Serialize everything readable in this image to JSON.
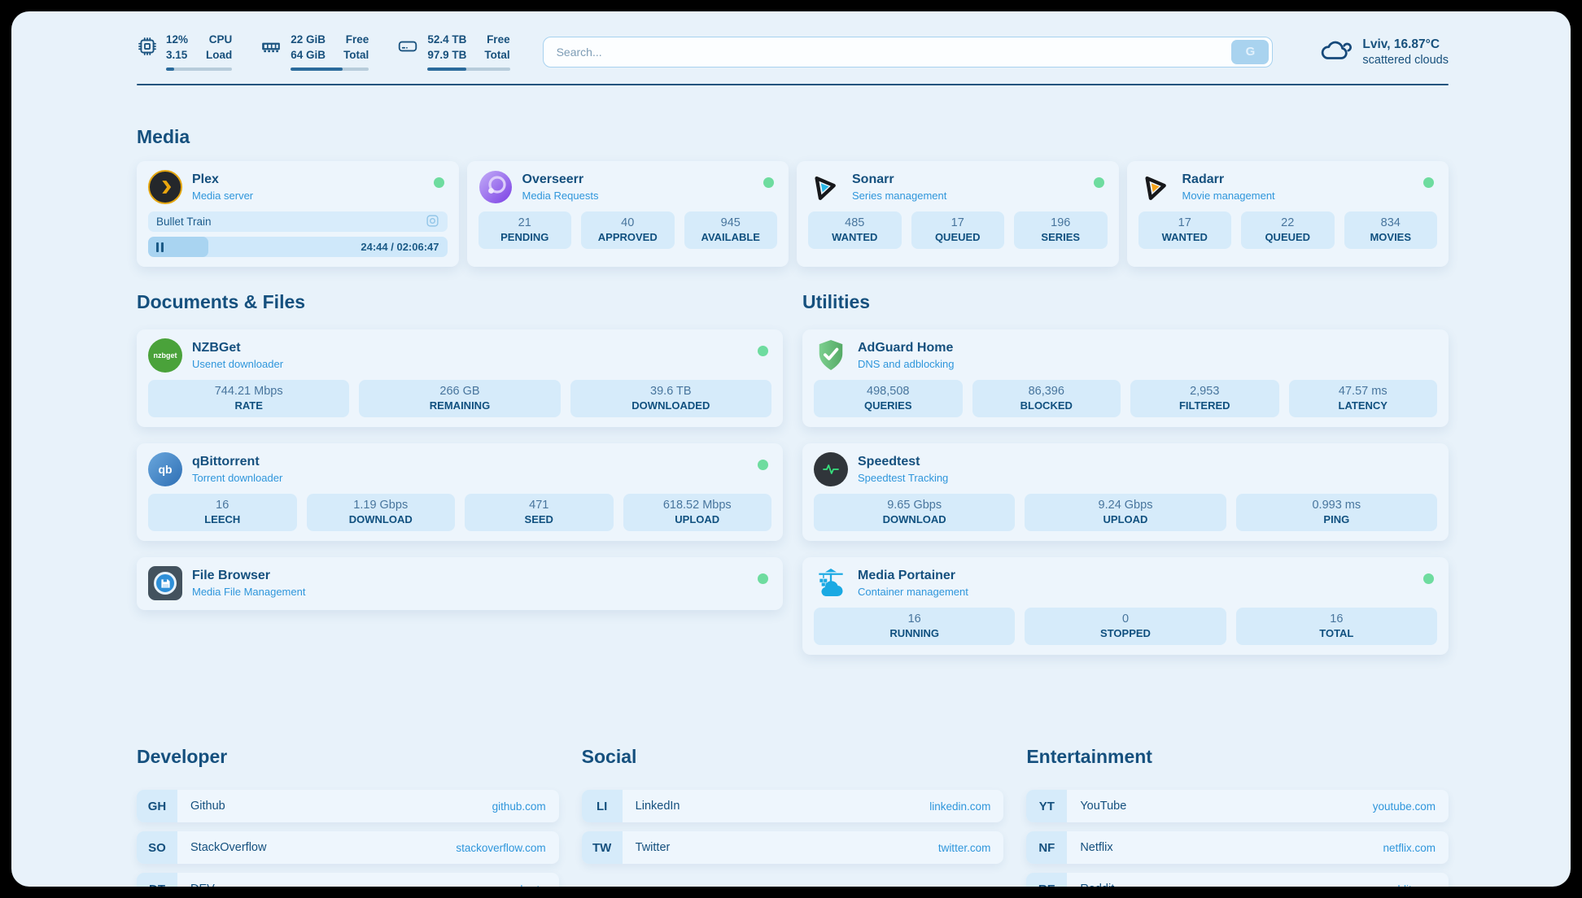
{
  "topbar": {
    "resources": [
      {
        "col1": [
          "12%",
          "3.15"
        ],
        "col2": [
          "CPU",
          "Load"
        ],
        "percent": 12
      },
      {
        "col1": [
          "22 GiB",
          "64 GiB"
        ],
        "col2": [
          "Free",
          "Total"
        ],
        "percent": 66
      },
      {
        "col1": [
          "52.4 TB",
          "97.9 TB"
        ],
        "col2": [
          "Free",
          "Total"
        ],
        "percent": 47
      }
    ],
    "search": {
      "placeholder": "Search...",
      "button_label": "G"
    },
    "weather": {
      "location_temp": "Lviv, 16.87°C",
      "condition": "scattered clouds"
    }
  },
  "media": {
    "title": "Media",
    "plex": {
      "name": "Plex",
      "desc": "Media server",
      "now_playing": {
        "title": "Bullet Train",
        "time": "24:44 / 02:06:47",
        "progress_percent": 20
      }
    },
    "overseerr": {
      "name": "Overseerr",
      "desc": "Media Requests",
      "stats": [
        {
          "value": "21",
          "label": "PENDING"
        },
        {
          "value": "40",
          "label": "APPROVED"
        },
        {
          "value": "945",
          "label": "AVAILABLE"
        }
      ]
    },
    "sonarr": {
      "name": "Sonarr",
      "desc": "Series management",
      "stats": [
        {
          "value": "485",
          "label": "WANTED"
        },
        {
          "value": "17",
          "label": "QUEUED"
        },
        {
          "value": "196",
          "label": "SERIES"
        }
      ]
    },
    "radarr": {
      "name": "Radarr",
      "desc": "Movie management",
      "stats": [
        {
          "value": "17",
          "label": "WANTED"
        },
        {
          "value": "22",
          "label": "QUEUED"
        },
        {
          "value": "834",
          "label": "MOVIES"
        }
      ]
    }
  },
  "documents": {
    "title": "Documents & Files",
    "nzbget": {
      "name": "NZBGet",
      "desc": "Usenet downloader",
      "icon_text": "nzbget",
      "stats": [
        {
          "value": "744.21 Mbps",
          "label": "RATE"
        },
        {
          "value": "266 GB",
          "label": "REMAINING"
        },
        {
          "value": "39.6 TB",
          "label": "DOWNLOADED"
        }
      ]
    },
    "qbittorrent": {
      "name": "qBittorrent",
      "desc": "Torrent downloader",
      "icon_text": "qb",
      "stats": [
        {
          "value": "16",
          "label": "LEECH"
        },
        {
          "value": "1.19 Gbps",
          "label": "DOWNLOAD"
        },
        {
          "value": "471",
          "label": "SEED"
        },
        {
          "value": "618.52 Mbps",
          "label": "UPLOAD"
        }
      ]
    },
    "filebrowser": {
      "name": "File Browser",
      "desc": "Media File Management"
    }
  },
  "utilities": {
    "title": "Utilities",
    "adguard": {
      "name": "AdGuard Home",
      "desc": "DNS and adblocking",
      "stats": [
        {
          "value": "498,508",
          "label": "QUERIES"
        },
        {
          "value": "86,396",
          "label": "BLOCKED"
        },
        {
          "value": "2,953",
          "label": "FILTERED"
        },
        {
          "value": "47.57 ms",
          "label": "LATENCY"
        }
      ]
    },
    "speedtest": {
      "name": "Speedtest",
      "desc": "Speedtest Tracking",
      "stats": [
        {
          "value": "9.65 Gbps",
          "label": "DOWNLOAD"
        },
        {
          "value": "9.24 Gbps",
          "label": "UPLOAD"
        },
        {
          "value": "0.993 ms",
          "label": "PING"
        }
      ]
    },
    "portainer": {
      "name": "Media Portainer",
      "desc": "Container management",
      "stats": [
        {
          "value": "16",
          "label": "RUNNING"
        },
        {
          "value": "0",
          "label": "STOPPED"
        },
        {
          "value": "16",
          "label": "TOTAL"
        }
      ]
    }
  },
  "bookmarks": {
    "developer": {
      "title": "Developer",
      "items": [
        {
          "abbr": "GH",
          "name": "Github",
          "url": "github.com"
        },
        {
          "abbr": "SO",
          "name": "StackOverflow",
          "url": "stackoverflow.com"
        },
        {
          "abbr": "DT",
          "name": "DEV",
          "url": "dev.to"
        }
      ]
    },
    "social": {
      "title": "Social",
      "items": [
        {
          "abbr": "LI",
          "name": "LinkedIn",
          "url": "linkedin.com"
        },
        {
          "abbr": "TW",
          "name": "Twitter",
          "url": "twitter.com"
        }
      ]
    },
    "entertainment": {
      "title": "Entertainment",
      "items": [
        {
          "abbr": "YT",
          "name": "YouTube",
          "url": "youtube.com"
        },
        {
          "abbr": "NF",
          "name": "Netflix",
          "url": "netflix.com"
        },
        {
          "abbr": "RE",
          "name": "Reddit",
          "url": "reddit.com"
        }
      ]
    }
  },
  "colors": {
    "accent": "#2f96db",
    "status_green": "#6edc9f",
    "navy": "#15507e"
  }
}
